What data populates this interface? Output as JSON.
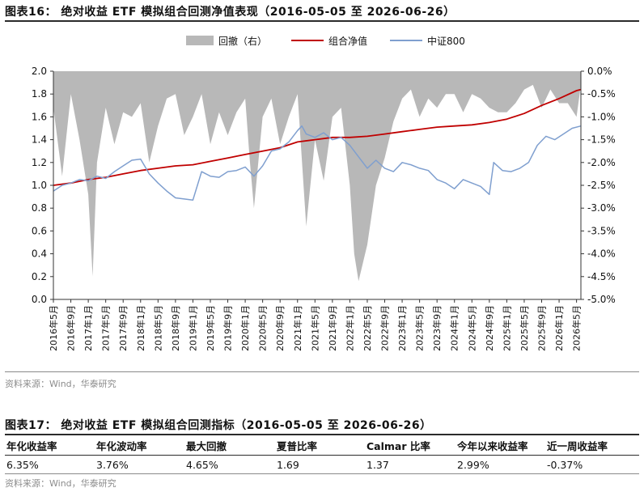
{
  "figure16": {
    "title": "图表16：  绝对收益 ETF 模拟组合回测净值表现（2016-05-05 至 2026-06-26）",
    "source": "资料来源：Wind，华泰研究"
  },
  "chart_data": {
    "type": "line",
    "title": "",
    "legend": {
      "placement": "top-center",
      "entries": [
        "回撤（右）",
        "组合净值",
        "中证800"
      ]
    },
    "colors": {
      "drawdown": "#b8b8b8",
      "portfolio": "#c00000",
      "csi800": "#7f9fcf",
      "axis": "#333333"
    },
    "y_left": {
      "min": 0.0,
      "max": 2.0,
      "ticks": [
        "0.0",
        "0.2",
        "0.4",
        "0.6",
        "0.8",
        "1.0",
        "1.2",
        "1.4",
        "1.6",
        "1.8",
        "2.0"
      ]
    },
    "y_right": {
      "min": -5.0,
      "max": 0.0,
      "unit": "%",
      "ticks": [
        "0.0%",
        "-0.5%",
        "-1.0%",
        "-1.5%",
        "-2.0%",
        "-2.5%",
        "-3.0%",
        "-3.5%",
        "-4.0%",
        "-4.5%",
        "-5.0%"
      ]
    },
    "x_range": [
      "2016-05",
      "2026-06"
    ],
    "x_ticks": [
      "2016年5月",
      "2016年9月",
      "2017年1月",
      "2017年5月",
      "2017年9月",
      "2018年1月",
      "2018年5月",
      "2018年9月",
      "2019年1月",
      "2019年5月",
      "2019年9月",
      "2020年1月",
      "2020年5月",
      "2020年9月",
      "2021年1月",
      "2021年5月",
      "2021年9月",
      "2022年1月",
      "2022年5月",
      "2022年9月",
      "2023年1月",
      "2023年5月",
      "2023年9月",
      "2024年1月",
      "2024年5月",
      "2024年9月",
      "2025年1月",
      "2025年5月",
      "2025年9月",
      "2026年1月",
      "2026年5月"
    ],
    "series": [
      {
        "name": "组合净值",
        "axis": "left",
        "x": [
          "2016-05",
          "2016-09",
          "2017-01",
          "2017-05",
          "2017-09",
          "2018-01",
          "2018-05",
          "2018-09",
          "2019-01",
          "2019-05",
          "2019-09",
          "2020-01",
          "2020-05",
          "2020-09",
          "2021-01",
          "2021-05",
          "2021-09",
          "2022-01",
          "2022-05",
          "2022-09",
          "2023-01",
          "2023-05",
          "2023-09",
          "2024-01",
          "2024-05",
          "2024-09",
          "2025-01",
          "2025-05",
          "2025-09",
          "2026-01",
          "2026-05",
          "2026-06"
        ],
        "values": [
          1.0,
          1.02,
          1.05,
          1.07,
          1.1,
          1.13,
          1.15,
          1.17,
          1.18,
          1.21,
          1.24,
          1.27,
          1.3,
          1.33,
          1.38,
          1.4,
          1.42,
          1.42,
          1.43,
          1.45,
          1.47,
          1.49,
          1.51,
          1.52,
          1.53,
          1.55,
          1.58,
          1.63,
          1.7,
          1.76,
          1.83,
          1.84
        ]
      },
      {
        "name": "中证800",
        "axis": "left",
        "x": [
          "2016-05",
          "2016-07",
          "2016-09",
          "2016-11",
          "2017-01",
          "2017-03",
          "2017-05",
          "2017-07",
          "2017-09",
          "2017-11",
          "2018-01",
          "2018-03",
          "2018-05",
          "2018-07",
          "2018-09",
          "2018-11",
          "2019-01",
          "2019-03",
          "2019-05",
          "2019-07",
          "2019-09",
          "2019-11",
          "2020-01",
          "2020-03",
          "2020-05",
          "2020-07",
          "2020-09",
          "2020-11",
          "2021-01",
          "2021-02",
          "2021-03",
          "2021-05",
          "2021-07",
          "2021-09",
          "2021-11",
          "2022-01",
          "2022-03",
          "2022-05",
          "2022-07",
          "2022-09",
          "2022-11",
          "2023-01",
          "2023-03",
          "2023-05",
          "2023-07",
          "2023-09",
          "2023-11",
          "2024-01",
          "2024-03",
          "2024-05",
          "2024-07",
          "2024-09",
          "2024-10",
          "2024-12",
          "2025-02",
          "2025-04",
          "2025-06",
          "2025-08",
          "2025-10",
          "2025-12",
          "2026-02",
          "2026-04",
          "2026-06"
        ],
        "values": [
          0.95,
          1.0,
          1.02,
          1.05,
          1.04,
          1.08,
          1.06,
          1.12,
          1.17,
          1.22,
          1.23,
          1.1,
          1.02,
          0.95,
          0.89,
          0.88,
          0.87,
          1.12,
          1.08,
          1.07,
          1.12,
          1.13,
          1.16,
          1.08,
          1.17,
          1.3,
          1.32,
          1.38,
          1.48,
          1.52,
          1.45,
          1.42,
          1.46,
          1.4,
          1.42,
          1.35,
          1.25,
          1.15,
          1.22,
          1.15,
          1.12,
          1.2,
          1.18,
          1.15,
          1.13,
          1.05,
          1.02,
          0.97,
          1.05,
          1.02,
          0.99,
          0.92,
          1.2,
          1.13,
          1.12,
          1.15,
          1.2,
          1.35,
          1.43,
          1.4,
          1.45,
          1.5,
          1.52
        ]
      },
      {
        "name": "回撤（右）",
        "axis": "right",
        "kind": "area",
        "x": [
          "2016-05",
          "2016-07",
          "2016-09",
          "2016-11",
          "2017-01",
          "2017-02",
          "2017-03",
          "2017-05",
          "2017-07",
          "2017-09",
          "2017-11",
          "2018-01",
          "2018-03",
          "2018-05",
          "2018-07",
          "2018-09",
          "2018-11",
          "2019-01",
          "2019-03",
          "2019-05",
          "2019-07",
          "2019-09",
          "2019-11",
          "2020-01",
          "2020-02",
          "2020-03",
          "2020-05",
          "2020-07",
          "2020-09",
          "2020-11",
          "2021-01",
          "2021-03",
          "2021-05",
          "2021-07",
          "2021-09",
          "2021-11",
          "2022-01",
          "2022-02",
          "2022-03",
          "2022-04",
          "2022-05",
          "2022-07",
          "2022-09",
          "2022-11",
          "2023-01",
          "2023-03",
          "2023-05",
          "2023-07",
          "2023-09",
          "2023-11",
          "2024-01",
          "2024-03",
          "2024-05",
          "2024-07",
          "2024-09",
          "2024-11",
          "2025-01",
          "2025-03",
          "2025-05",
          "2025-07",
          "2025-09",
          "2025-11",
          "2026-01",
          "2026-03",
          "2026-05",
          "2026-06"
        ],
        "values": [
          -0.8,
          -2.3,
          -0.5,
          -1.5,
          -2.7,
          -4.5,
          -2.0,
          -0.8,
          -1.6,
          -0.9,
          -1.0,
          -0.7,
          -2.0,
          -1.2,
          -0.6,
          -0.5,
          -1.4,
          -1.0,
          -0.5,
          -1.6,
          -0.9,
          -1.4,
          -0.9,
          -0.6,
          -1.9,
          -3.0,
          -1.0,
          -0.6,
          -1.6,
          -1.0,
          -0.5,
          -3.4,
          -1.5,
          -2.4,
          -1.0,
          -0.8,
          -2.5,
          -4.0,
          -4.6,
          -4.2,
          -3.8,
          -2.5,
          -1.9,
          -1.1,
          -0.6,
          -0.4,
          -1.0,
          -0.6,
          -0.8,
          -0.5,
          -0.5,
          -0.9,
          -0.5,
          -0.6,
          -0.8,
          -0.9,
          -0.9,
          -0.7,
          -0.4,
          -0.3,
          -0.8,
          -0.4,
          -0.7,
          -0.7,
          -1.0,
          -0.3
        ]
      }
    ]
  },
  "figure17": {
    "title": "图表17：  绝对收益 ETF 模拟组合回测指标（2016-05-05 至 2026-06-26）",
    "headers": [
      "年化收益率",
      "年化波动率",
      "最大回撤",
      "夏普比率",
      "Calmar 比率",
      "今年以来收益率",
      "近一周收益率"
    ],
    "values": [
      "6.35%",
      "3.76%",
      "4.65%",
      "1.69",
      "1.37",
      "2.99%",
      "-0.37%"
    ],
    "source": "资料来源：Wind，华泰研究"
  }
}
